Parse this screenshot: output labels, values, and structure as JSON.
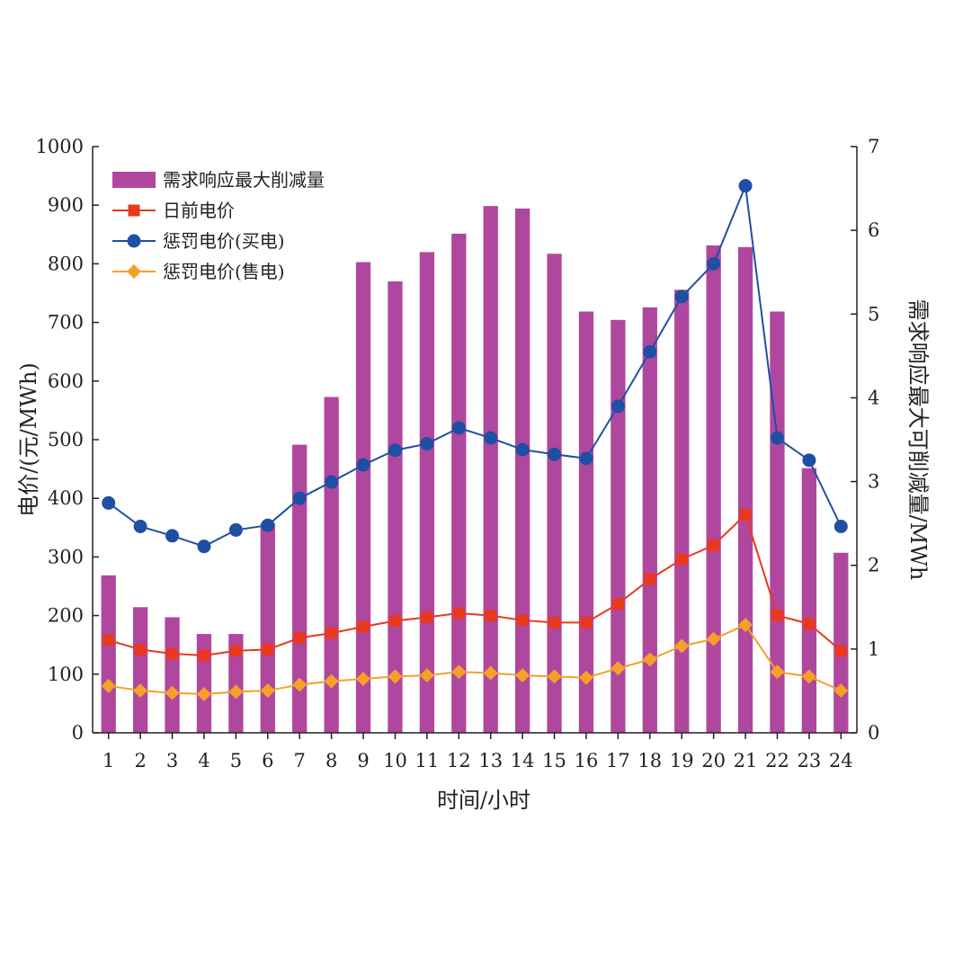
{
  "chart_data": {
    "type": "bar+line",
    "categories": [
      "1",
      "2",
      "3",
      "4",
      "5",
      "6",
      "7",
      "8",
      "9",
      "10",
      "11",
      "12",
      "13",
      "14",
      "15",
      "16",
      "17",
      "18",
      "19",
      "20",
      "21",
      "22",
      "23",
      "24"
    ],
    "xlabel": "时间/小时",
    "ylabel_left": "电价/(元/MWh)",
    "ylabel_right": "需求响应最大可削减量/MWh",
    "ylim_left": [
      0,
      1000
    ],
    "ylim_right": [
      0,
      7
    ],
    "yticks_left": [
      "0",
      "100",
      "200",
      "300",
      "400",
      "500",
      "600",
      "700",
      "800",
      "900",
      "1000"
    ],
    "yticks_right": [
      "0",
      "1",
      "2",
      "3",
      "4",
      "5",
      "6",
      "7"
    ],
    "grid": false,
    "legend_position": "top-left",
    "series": [
      {
        "name": "需求响应最大削减量",
        "kind": "bar",
        "axis": "right",
        "color": "#b0479f",
        "values": [
          1.88,
          1.5,
          1.38,
          1.18,
          1.18,
          2.5,
          3.44,
          4.01,
          5.62,
          5.39,
          5.74,
          5.96,
          6.29,
          6.26,
          5.72,
          5.03,
          4.93,
          5.08,
          5.29,
          5.82,
          5.8,
          5.03,
          3.16,
          2.15
        ]
      },
      {
        "name": "日前电价",
        "kind": "line",
        "axis": "left",
        "marker": "square",
        "color": "#e8391f",
        "values": [
          158,
          142,
          135,
          132,
          140,
          142,
          162,
          170,
          181,
          191,
          197,
          204,
          200,
          192,
          188,
          188,
          220,
          262,
          296,
          320,
          372,
          200,
          186,
          140
        ]
      },
      {
        "name": "惩罚电价(买电)",
        "kind": "line",
        "axis": "left",
        "marker": "circle",
        "color": "#1f4fa3",
        "values": [
          392,
          352,
          336,
          318,
          346,
          354,
          400,
          428,
          457,
          482,
          493,
          520,
          503,
          483,
          475,
          468,
          557,
          650,
          744,
          800,
          933,
          503,
          465,
          352
        ]
      },
      {
        "name": "惩罚电价(售电)",
        "kind": "line",
        "axis": "left",
        "marker": "diamond",
        "color": "#f5a028",
        "values": [
          80,
          72,
          68,
          66,
          70,
          72,
          82,
          88,
          92,
          96,
          98,
          104,
          102,
          98,
          96,
          94,
          110,
          125,
          148,
          160,
          184,
          104,
          96,
          72
        ]
      }
    ]
  }
}
